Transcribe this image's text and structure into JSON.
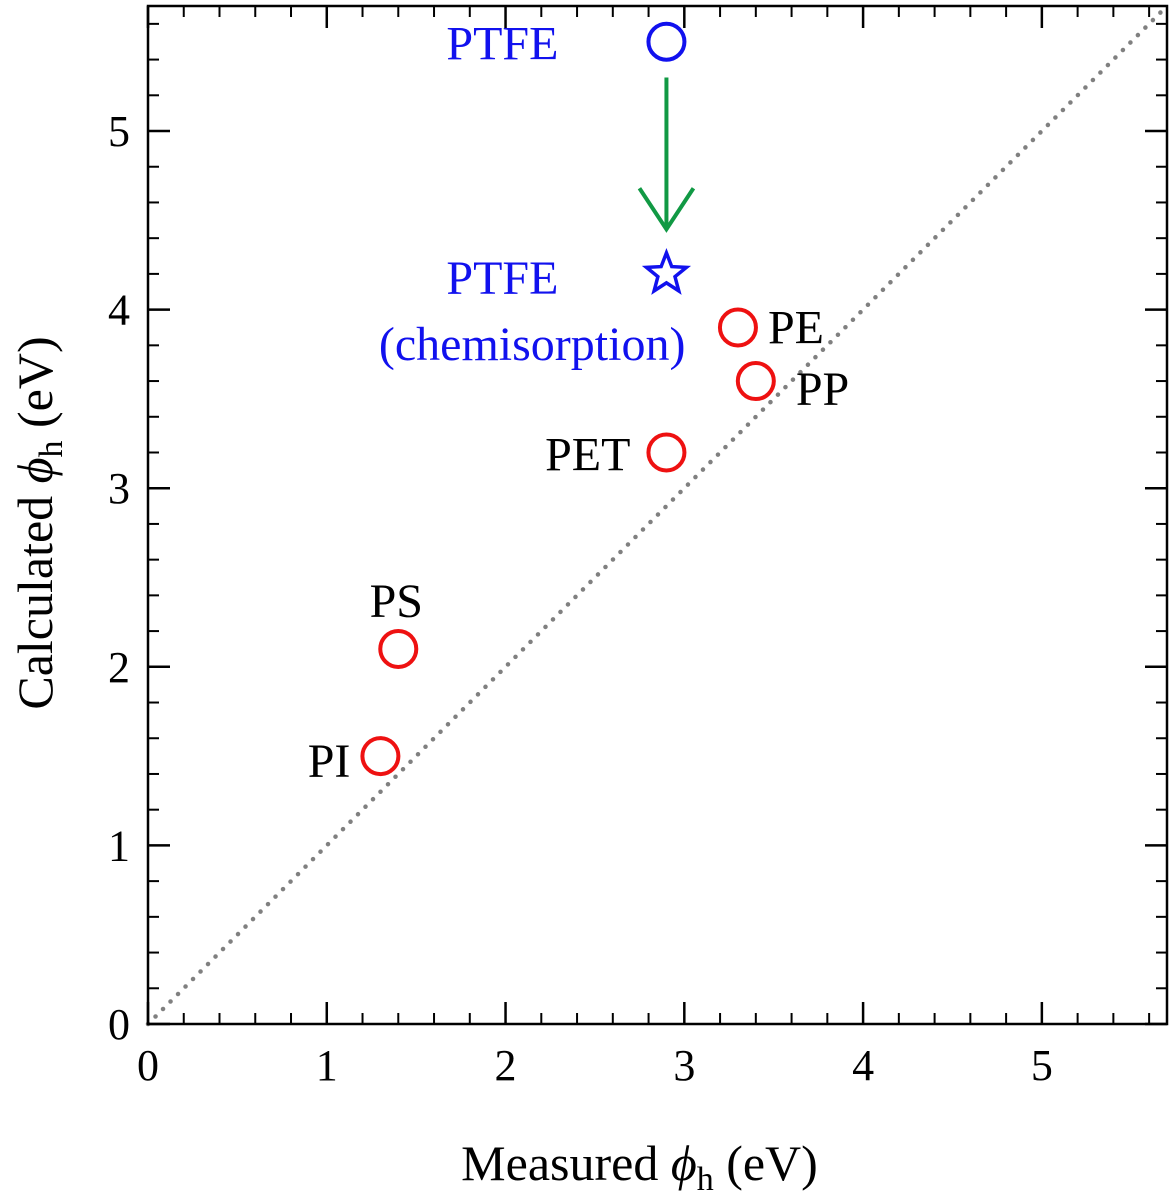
{
  "chart_data": {
    "type": "scatter",
    "xlabel": "Measured ϕh (eV)",
    "ylabel": "Calculated ϕh (eV)",
    "xlabel_parts": {
      "prefix": "Measured ",
      "symbol": "ϕ",
      "sub": "h",
      "unit": " (eV)"
    },
    "ylabel_parts": {
      "prefix": "Calculated ",
      "symbol": "ϕ",
      "sub": "h",
      "unit": " (eV)"
    },
    "xlim": [
      0,
      5.7
    ],
    "ylim": [
      0,
      5.7
    ],
    "x_ticks": [
      0,
      1,
      2,
      3,
      4,
      5
    ],
    "y_ticks": [
      0,
      1,
      2,
      3,
      4,
      5
    ],
    "x_minor_step": 0.2,
    "y_minor_step": 0.2,
    "grid": false,
    "reference_line": {
      "style": "dotted",
      "color": "#808080",
      "description": "y = x"
    },
    "series": [
      {
        "marker": "circle",
        "color": "#ee1111",
        "points": [
          {
            "label": "PE",
            "x": 3.3,
            "y": 3.9
          },
          {
            "label": "PP",
            "x": 3.4,
            "y": 3.6
          },
          {
            "label": "PET",
            "x": 2.9,
            "y": 3.2
          },
          {
            "label": "PS",
            "x": 1.4,
            "y": 2.1
          },
          {
            "label": "PI",
            "x": 1.3,
            "y": 1.5
          }
        ]
      },
      {
        "marker": "circle",
        "color": "#1111ee",
        "points": [
          {
            "label": "PTFE",
            "x": 2.9,
            "y": 5.5
          }
        ]
      },
      {
        "marker": "star",
        "color": "#1111ee",
        "points": [
          {
            "label": "PTFE",
            "label2": "(chemisorption)",
            "x": 2.9,
            "y": 4.2
          }
        ]
      }
    ],
    "annotations": [
      {
        "type": "arrow",
        "color": "#119944",
        "from": [
          2.9,
          5.3
        ],
        "to": [
          2.9,
          4.45
        ]
      }
    ]
  }
}
